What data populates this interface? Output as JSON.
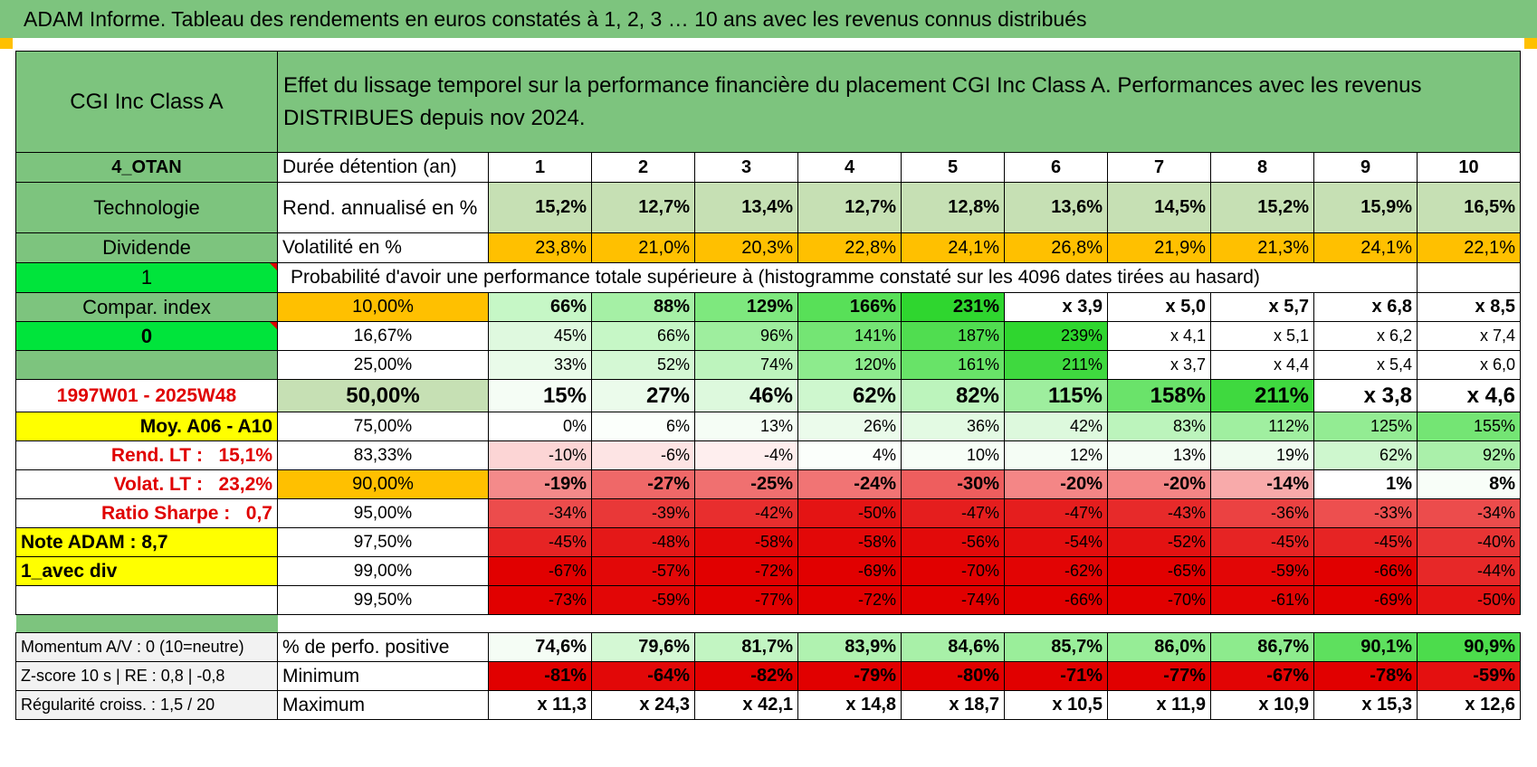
{
  "banner": "ADAM Informe. Tableau des rendements en euros constatés à 1, 2, 3 … 10 ans avec les revenus connus distribués",
  "left": {
    "fund": "CGI Inc Class A",
    "zone": "4_OTAN",
    "sector": "Technologie",
    "type": "Dividende",
    "flag_one": "1",
    "compar_index": "Compar. index",
    "flag_zero": "0",
    "period": "1997W01 - 2025W48",
    "moy": "Moy. A06 - A10",
    "rend_lt_label": "Rend. LT :",
    "rend_lt_value": "15,1%",
    "volat_lt_label": "Volat. LT :",
    "volat_lt_value": "23,2%",
    "sharpe_label": "Ratio Sharpe :",
    "sharpe_value": "0,7",
    "note": "Note ADAM : 8,7",
    "avec_div": "1_avec div"
  },
  "title": "Effet du lissage temporel sur la performance financière du placement CGI Inc Class A. Performances avec les revenus DISTRIBUES depuis nov 2024.",
  "duree_label": "Durée détention (an)",
  "years": [
    "1",
    "2",
    "3",
    "4",
    "5",
    "6",
    "7",
    "8",
    "9",
    "10"
  ],
  "rend": {
    "label": "Rend. annualisé en %",
    "values": [
      "15,2%",
      "12,7%",
      "13,4%",
      "12,7%",
      "12,8%",
      "13,6%",
      "14,5%",
      "15,2%",
      "15,9%",
      "16,5%"
    ]
  },
  "vol": {
    "label": "Volatilité en %",
    "values": [
      "23,8%",
      "21,0%",
      "20,3%",
      "22,8%",
      "24,1%",
      "26,8%",
      "21,9%",
      "21,3%",
      "24,1%",
      "22,1%"
    ]
  },
  "prob_title": "Probabilité d'avoir une performance totale supérieure à (histogramme constaté sur les 4096 dates tirées au hasard)",
  "prob_rows": [
    {
      "pct": "10,00%",
      "values": [
        "66%",
        "88%",
        "129%",
        "166%",
        "231%",
        "x 3,9",
        "x 5,0",
        "x 5,7",
        "x 6,8",
        "x 8,5"
      ],
      "colors": [
        "#c6f7c6",
        "#a5f0a5",
        "#7ee87e",
        "#58e058",
        "#2fd62f",
        "#ffffff",
        "#ffffff",
        "#ffffff",
        "#ffffff",
        "#ffffff"
      ]
    },
    {
      "pct": "16,67%",
      "values": [
        "45%",
        "66%",
        "96%",
        "141%",
        "187%",
        "239%",
        "x 4,1",
        "x 5,1",
        "x 6,2",
        "x 7,4"
      ],
      "colors": [
        "#dff9df",
        "#c6f7c6",
        "#9eee9e",
        "#74e574",
        "#50dd50",
        "#2fd62f",
        "#ffffff",
        "#ffffff",
        "#ffffff",
        "#ffffff"
      ]
    },
    {
      "pct": "25,00%",
      "values": [
        "33%",
        "52%",
        "74%",
        "120%",
        "161%",
        "211%",
        "x 3,7",
        "x 4,4",
        "x 5,4",
        "x 6,0"
      ],
      "colors": [
        "#e9fbe9",
        "#d4f8d4",
        "#bdf4bd",
        "#8deb8d",
        "#68e368",
        "#3fd93f",
        "#ffffff",
        "#ffffff",
        "#ffffff",
        "#ffffff"
      ]
    },
    {
      "pct": "50,00%",
      "values": [
        "15%",
        "27%",
        "46%",
        "62%",
        "82%",
        "115%",
        "158%",
        "211%",
        "x 3,8",
        "x 4,6"
      ],
      "colors": [
        "#f5fdf5",
        "#ebfbeb",
        "#ddf9dd",
        "#cef7ce",
        "#bcf4bc",
        "#9eee9e",
        "#6ae36a",
        "#3fd93f",
        "#ffffff",
        "#ffffff"
      ]
    },
    {
      "pct": "75,00%",
      "values": [
        "0%",
        "6%",
        "13%",
        "26%",
        "36%",
        "42%",
        "83%",
        "112%",
        "125%",
        "155%"
      ],
      "colors": [
        "#ffffff",
        "#fbfffb",
        "#f5fdf5",
        "#ebfbeb",
        "#e3fae3",
        "#ddf9dd",
        "#bcf4bc",
        "#a0efa0",
        "#93ec93",
        "#74e574"
      ]
    },
    {
      "pct": "83,33%",
      "values": [
        "-10%",
        "-6%",
        "-4%",
        "4%",
        "10%",
        "12%",
        "13%",
        "19%",
        "62%",
        "92%"
      ],
      "colors": [
        "#fcd5d5",
        "#fde4e4",
        "#feeeee",
        "#fbfffb",
        "#f7fef7",
        "#f5fdf5",
        "#f5fdf5",
        "#f0fcf0",
        "#cef7ce",
        "#aaf0aa"
      ]
    },
    {
      "pct": "90,00%",
      "values": [
        "-19%",
        "-27%",
        "-25%",
        "-24%",
        "-30%",
        "-20%",
        "-20%",
        "-14%",
        "1%",
        "8%"
      ],
      "colors": [
        "#f48a8a",
        "#ef6868",
        "#f07070",
        "#f17474",
        "#ee5e5e",
        "#f48686",
        "#f48686",
        "#f8aaaa",
        "#ffffff",
        "#f8fef8"
      ]
    },
    {
      "pct": "95,00%",
      "values": [
        "-34%",
        "-39%",
        "-42%",
        "-50%",
        "-47%",
        "-47%",
        "-43%",
        "-36%",
        "-33%",
        "-34%"
      ],
      "colors": [
        "#ec4c4c",
        "#e93838",
        "#e82e2e",
        "#e41414",
        "#e51e1e",
        "#e51e1e",
        "#e72a2a",
        "#eb4242",
        "#ed4f4f",
        "#ec4c4c"
      ]
    },
    {
      "pct": "97,50%",
      "values": [
        "-45%",
        "-48%",
        "-58%",
        "-58%",
        "-56%",
        "-54%",
        "-52%",
        "-45%",
        "-45%",
        "-40%"
      ],
      "colors": [
        "#e62424",
        "#e41818",
        "#e20808",
        "#e20808",
        "#e20a0a",
        "#e30e0e",
        "#e31212",
        "#e62424",
        "#e62424",
        "#e83434"
      ]
    },
    {
      "pct": "99,00%",
      "values": [
        "-67%",
        "-57%",
        "-72%",
        "-69%",
        "-70%",
        "-62%",
        "-65%",
        "-59%",
        "-66%",
        "-44%"
      ],
      "colors": [
        "#e10000",
        "#e20808",
        "#e10000",
        "#e10000",
        "#e10000",
        "#e20404",
        "#e10000",
        "#e20606",
        "#e10000",
        "#e72828"
      ]
    },
    {
      "pct": "99,50%",
      "values": [
        "-73%",
        "-59%",
        "-77%",
        "-72%",
        "-74%",
        "-66%",
        "-70%",
        "-61%",
        "-69%",
        "-50%"
      ],
      "colors": [
        "#e10000",
        "#e20606",
        "#e10000",
        "#e10000",
        "#e10000",
        "#e10000",
        "#e10000",
        "#e20404",
        "#e10000",
        "#e41414"
      ]
    }
  ],
  "bottom": {
    "momentum": "Momentum A/V : 0 (10=neutre)",
    "zscore": "Z-score 10 s | RE : 0,8 | -0,8",
    "regularite": "Régularité croiss. : 1,5 / 20",
    "positive": {
      "label": "% de perfo. positive",
      "values": [
        "74,6%",
        "79,6%",
        "81,7%",
        "83,9%",
        "84,6%",
        "85,7%",
        "86,0%",
        "86,7%",
        "90,1%",
        "90,9%"
      ],
      "colors": [
        "#f5fdf5",
        "#d4f8d4",
        "#c2f5c2",
        "#b0f2b0",
        "#a8f0a8",
        "#9aee9a",
        "#96ed96",
        "#8deb8d",
        "#5ee05e",
        "#4cdc4c"
      ]
    },
    "minimum": {
      "label": "Minimum",
      "values": [
        "-81%",
        "-64%",
        "-82%",
        "-79%",
        "-80%",
        "-71%",
        "-77%",
        "-67%",
        "-78%",
        "-59%"
      ],
      "colors": [
        "#e10000",
        "#e20808",
        "#e10000",
        "#e10000",
        "#e10000",
        "#e10000",
        "#e10000",
        "#e20404",
        "#e10000",
        "#e41010"
      ]
    },
    "maximum": {
      "label": "Maximum",
      "values": [
        "x 11,3",
        "x 24,3",
        "x 42,1",
        "x 14,8",
        "x 18,7",
        "x 10,5",
        "x 11,9",
        "x 10,9",
        "x 15,3",
        "x 12,6"
      ]
    }
  },
  "colors": {
    "green": "#7dc47e",
    "light_green": "#c6e0b4",
    "orange": "#ffc000",
    "bright_green": "#00e43b",
    "yellow": "#ffff00",
    "red_text": "#e00000"
  }
}
